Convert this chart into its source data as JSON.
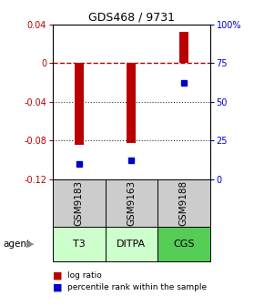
{
  "title": "GDS468 / 9731",
  "samples": [
    "GSM9183",
    "GSM9163",
    "GSM9188"
  ],
  "agents": [
    "T3",
    "DITPA",
    "CGS"
  ],
  "log_ratios": [
    -0.085,
    -0.083,
    0.032
  ],
  "percentile_ranks": [
    10,
    12,
    62
  ],
  "bar_color": "#bb0000",
  "dot_color": "#0000cc",
  "ylim_left": [
    -0.12,
    0.04
  ],
  "ylim_right": [
    0,
    100
  ],
  "yticks_left": [
    0.04,
    0.0,
    -0.04,
    -0.08,
    -0.12
  ],
  "yticks_right": [
    100,
    75,
    50,
    25,
    0
  ],
  "ytick_labels_left": [
    "0.04",
    "0",
    "-0.04",
    "-0.08",
    "-0.12"
  ],
  "ytick_labels_right": [
    "100%",
    "75",
    "50",
    "25",
    "0"
  ],
  "zero_line_color": "#bb0000",
  "grid_color": "#333333",
  "sample_bg_color": "#cccccc",
  "agent_bg_colors": [
    "#ccffcc",
    "#ccffcc",
    "#55cc55"
  ],
  "bar_width": 0.18,
  "x_positions": [
    1,
    2,
    3
  ],
  "xlim": [
    0.5,
    3.5
  ]
}
